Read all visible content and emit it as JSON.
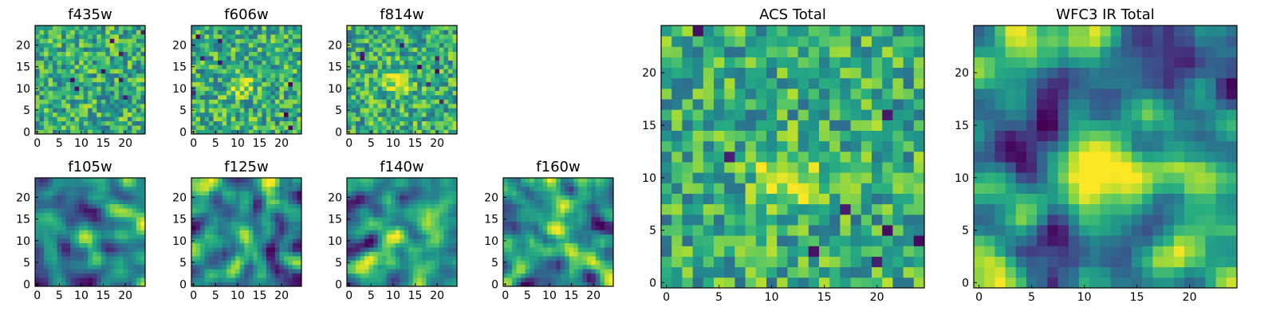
{
  "figure": {
    "description_free": true
  },
  "chart_data": [
    {
      "type": "heatmap",
      "title": "f435w",
      "grid_size": 25,
      "xticks": [
        "0",
        "5",
        "10",
        "15",
        "20"
      ],
      "yticks": [
        "0",
        "5",
        "10",
        "15",
        "20"
      ],
      "colormap": "viridis",
      "style": "noisy",
      "peak": null
    },
    {
      "type": "heatmap",
      "title": "f606w",
      "grid_size": 25,
      "xticks": [
        "0",
        "5",
        "10",
        "15",
        "20"
      ],
      "yticks": [
        "0",
        "5",
        "10",
        "15",
        "20"
      ],
      "colormap": "viridis",
      "style": "noisy",
      "peak": [
        11,
        11
      ]
    },
    {
      "type": "heatmap",
      "title": "f814w",
      "grid_size": 25,
      "xticks": [
        "0",
        "5",
        "10",
        "15",
        "20"
      ],
      "yticks": [
        "0",
        "5",
        "10",
        "15",
        "20"
      ],
      "colormap": "viridis",
      "style": "noisy",
      "peak": [
        11,
        12
      ]
    },
    {
      "type": "heatmap",
      "title": "f105w",
      "grid_size": 25,
      "xticks": [
        "0",
        "5",
        "10",
        "15",
        "20"
      ],
      "yticks": [
        "0",
        "5",
        "10",
        "15",
        "20"
      ],
      "colormap": "viridis",
      "style": "smooth",
      "peak": [
        11,
        11
      ]
    },
    {
      "type": "heatmap",
      "title": "f125w",
      "grid_size": 25,
      "xticks": [
        "0",
        "5",
        "10",
        "15",
        "20"
      ],
      "yticks": [
        "0",
        "5",
        "10",
        "15",
        "20"
      ],
      "colormap": "viridis",
      "style": "smooth",
      "peak": [
        12,
        10
      ]
    },
    {
      "type": "heatmap",
      "title": "f140w",
      "grid_size": 25,
      "xticks": [
        "0",
        "5",
        "10",
        "15",
        "20"
      ],
      "yticks": [
        "0",
        "5",
        "10",
        "15",
        "20"
      ],
      "colormap": "viridis",
      "style": "smooth",
      "peak": [
        11,
        11
      ]
    },
    {
      "type": "heatmap",
      "title": "f160w",
      "grid_size": 25,
      "xticks": [
        "0",
        "5",
        "10",
        "15",
        "20"
      ],
      "yticks": [
        "0",
        "5",
        "10",
        "15",
        "20"
      ],
      "colormap": "viridis",
      "style": "smooth",
      "peak": [
        12,
        13
      ]
    },
    {
      "type": "heatmap",
      "title": "ACS Total",
      "grid_size": 25,
      "xticks": [
        "0",
        "5",
        "10",
        "15",
        "20"
      ],
      "yticks": [
        "0",
        "5",
        "10",
        "15",
        "20"
      ],
      "colormap": "viridis",
      "style": "noisy",
      "peak": [
        11,
        10
      ]
    },
    {
      "type": "heatmap",
      "title": "WFC3 IR Total",
      "grid_size": 25,
      "xticks": [
        "0",
        "5",
        "10",
        "15",
        "20"
      ],
      "yticks": [
        "0",
        "5",
        "10",
        "15",
        "20"
      ],
      "colormap": "viridis",
      "style": "smooth",
      "peak": [
        12,
        12
      ]
    }
  ],
  "colors": {
    "viridis_low": "#440154",
    "viridis_mid_low": "#3b528b",
    "viridis_mid": "#21908d",
    "viridis_mid_high": "#5dc962",
    "viridis_high": "#fde725"
  }
}
